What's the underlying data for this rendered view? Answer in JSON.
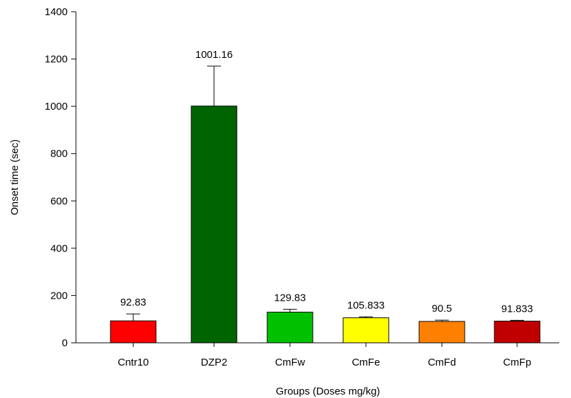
{
  "chart_data": {
    "type": "bar",
    "categories": [
      "Cntr10",
      "DZP2",
      "CmFw",
      "CmFe",
      "CmFd",
      "CmFp"
    ],
    "values": [
      92.83,
      1001.16,
      129.83,
      105.833,
      90.5,
      91.833
    ],
    "value_labels": [
      "92.83",
      "1001.16",
      "129.83",
      "105.833",
      "90.5",
      "91.833"
    ],
    "error_upper": [
      122,
      1170,
      142,
      110,
      96,
      95
    ],
    "colors": [
      "#ff0000",
      "#006400",
      "#00c000",
      "#ffff00",
      "#ff8000",
      "#c00000"
    ],
    "title": "",
    "xlabel": "Groups (Doses mg/kg)",
    "ylabel": "Onset time (sec)",
    "ylim": [
      0,
      1400
    ],
    "yticks": [
      0,
      200,
      400,
      600,
      800,
      1000,
      1200,
      1400
    ],
    "grid": false,
    "legend": "none"
  }
}
